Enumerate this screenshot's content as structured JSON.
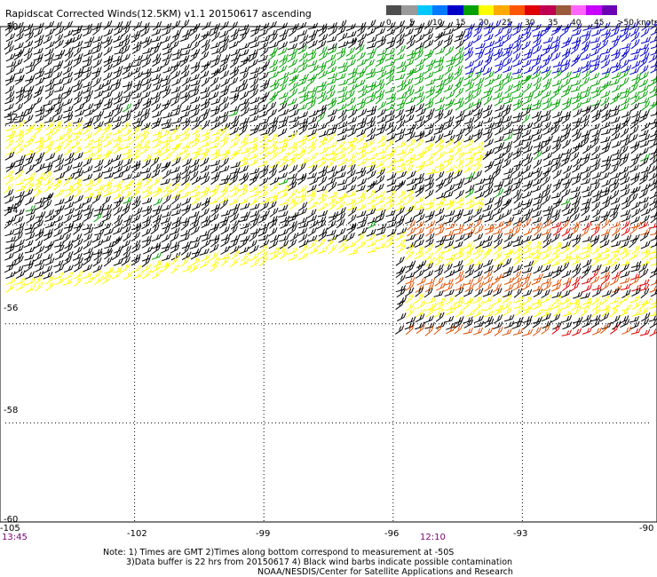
{
  "title": "Rapidscat Corrected Winds(12.5KM) v1.1 20150617 ascending",
  "legend": {
    "labels": [
      "0",
      "5",
      "10",
      "15",
      "20",
      "25",
      "30",
      "35",
      "40",
      "45",
      ">50 knots"
    ],
    "colors": [
      "#4d4d4d",
      "#9a9a9a",
      "#00c8ff",
      "#0078ff",
      "#0000c8",
      "#00a000",
      "#ffff00",
      "#ffaa00",
      "#ff5500",
      "#e00000",
      "#c00050",
      "#9b5a3c",
      "#ff64ff",
      "#c800ff",
      "#6e00b4"
    ]
  },
  "map": {
    "lon_ticks": [
      "-105",
      "-102",
      "-99",
      "-96",
      "-93",
      "-90"
    ],
    "lat_ticks": [
      "-50",
      "-52",
      "-54",
      "-56",
      "-58",
      "-60"
    ],
    "times": [
      {
        "label": "13:45",
        "lon": -105
      },
      {
        "label": "12:10",
        "lon": -95.4
      }
    ],
    "barb_colors": {
      "contaminated": "#000000",
      "green": "#00a000",
      "blue": "#0000c8",
      "yellow": "#ffff00",
      "orange": "#ffaa00",
      "dark_orange": "#e05000",
      "red": "#e00000"
    }
  },
  "notes": {
    "line1": "Note: 1) Times are GMT 2)Times along bottom correspond to measurement at -50S",
    "line2": "3)Data buffer is 22 hrs from 20150617 4) Black wind barbs indicate possible contamination",
    "line3": "NOAA/NESDIS/Center for Satellite Applications and Research"
  }
}
